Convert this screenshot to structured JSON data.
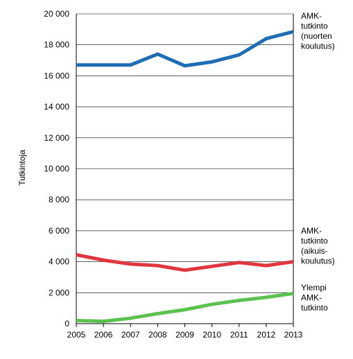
{
  "chart_data": {
    "type": "line",
    "title": "",
    "xlabel": "",
    "ylabel": "Tutkintoja",
    "x": [
      2005,
      2006,
      2007,
      2008,
      2009,
      2010,
      2011,
      2012,
      2013
    ],
    "xtick_labels": [
      "2005",
      "2006",
      "2007",
      "2008",
      "2009",
      "2010",
      "2011",
      "2012",
      "2013"
    ],
    "ylim": [
      0,
      20000
    ],
    "ytick_values": [
      0,
      2000,
      4000,
      6000,
      8000,
      10000,
      12000,
      14000,
      16000,
      18000,
      20000
    ],
    "ytick_labels": [
      "0",
      "2 000",
      "4 000",
      "6 000",
      "8 000",
      "10 000",
      "12 000",
      "14 000",
      "16 000",
      "18 000",
      "20 000"
    ],
    "grid": "horizontal",
    "legend": "none",
    "series": [
      {
        "id": "amk-nuorten",
        "label_lines": [
          "AMK-",
          "tutkinto",
          "(nuorten",
          "koulutus)"
        ],
        "color": "#1f6db5",
        "values": [
          16700,
          16700,
          16700,
          17400,
          16650,
          16900,
          17350,
          18400,
          18850
        ]
      },
      {
        "id": "amk-aikuis",
        "label_lines": [
          "AMK-",
          "tutkinto",
          "(aikuis-",
          "koulutus)"
        ],
        "color": "#e0363e",
        "values": [
          4450,
          4100,
          3850,
          3750,
          3450,
          3700,
          3950,
          3750,
          4000
        ]
      },
      {
        "id": "ylempi-amk",
        "label_lines": [
          "Ylempi",
          "AMK-",
          "tutkinto"
        ],
        "color": "#5cc24f",
        "values": [
          200,
          150,
          350,
          650,
          900,
          1250,
          1500,
          1700,
          1950
        ]
      }
    ]
  }
}
